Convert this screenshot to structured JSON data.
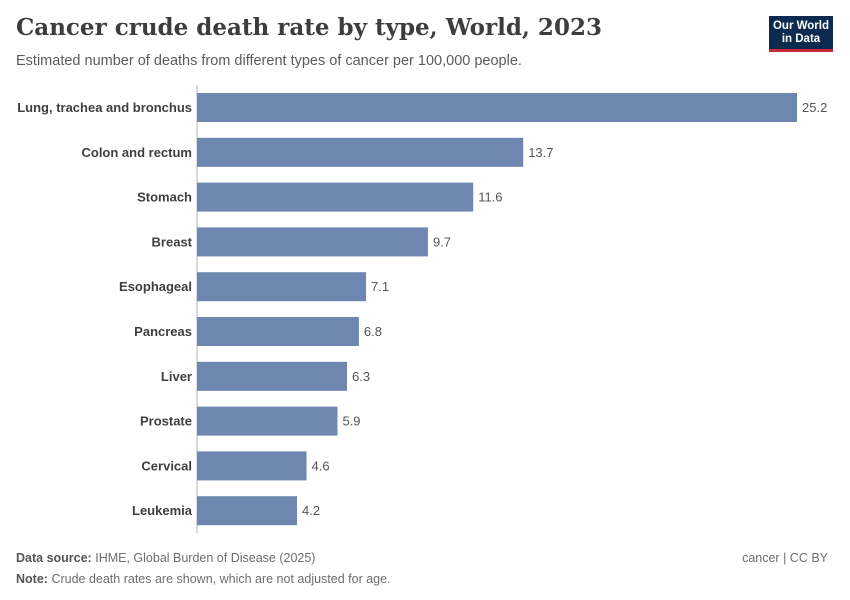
{
  "header": {
    "title": "Cancer crude death rate by type, World, 2023",
    "subtitle": "Estimated number of deaths from different types of cancer per 100,000 people.",
    "logo_line1": "Our World",
    "logo_line2": "in Data"
  },
  "footer": {
    "source_label": "Data source:",
    "source_text": "IHME, Global Burden of Disease (2025)",
    "note_label": "Note:",
    "note_text": "Crude death rates are shown, which are not adjusted for age.",
    "license": "cancer | CC BY"
  },
  "colors": {
    "bar": "#6d87b0",
    "logo_bg": "#0d2a4f",
    "logo_accent": "#c8283a"
  },
  "chart_data": {
    "type": "bar",
    "orientation": "horizontal",
    "title": "Cancer crude death rate by type, World, 2023",
    "categories": [
      "Lung, trachea and bronchus",
      "Colon and rectum",
      "Stomach",
      "Breast",
      "Esophageal",
      "Pancreas",
      "Liver",
      "Prostate",
      "Cervical",
      "Leukemia"
    ],
    "values": [
      25.2,
      13.7,
      11.6,
      9.7,
      7.1,
      6.8,
      6.3,
      5.9,
      4.6,
      4.2
    ],
    "xlim": [
      0,
      25.2
    ],
    "grid": false,
    "legend": "none"
  }
}
